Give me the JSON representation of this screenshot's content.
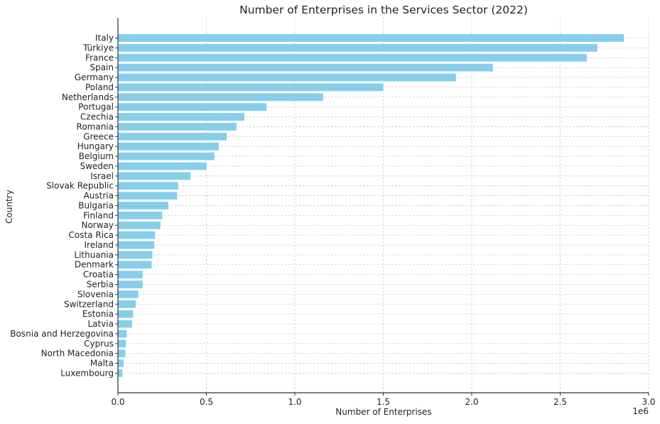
{
  "chart_data": {
    "type": "bar",
    "orientation": "horizontal",
    "title": "Number of Enterprises in the Services Sector (2022)",
    "xlabel": "Number of Enterprises",
    "ylabel": "Country",
    "x_offset_label": "1e6",
    "xlim": [
      0,
      3000000
    ],
    "x_ticks": [
      0,
      500000,
      1000000,
      1500000,
      2000000,
      2500000,
      3000000
    ],
    "x_tick_labels": [
      "0.0",
      "0.5",
      "1.0",
      "1.5",
      "2.0",
      "2.5",
      "3.0"
    ],
    "grid": true,
    "bar_color": "#87ceeb",
    "categories": [
      "Italy",
      "Türkiye",
      "France",
      "Spain",
      "Germany",
      "Poland",
      "Netherlands",
      "Portugal",
      "Czechia",
      "Romania",
      "Greece",
      "Hungary",
      "Belgium",
      "Sweden",
      "Israel",
      "Slovak Republic",
      "Austria",
      "Bulgaria",
      "Finland",
      "Norway",
      "Costa Rica",
      "Ireland",
      "Lithuania",
      "Denmark",
      "Croatia",
      "Serbia",
      "Slovenia",
      "Switzerland",
      "Estonia",
      "Latvia",
      "Bosnia and Herzegovina",
      "Cyprus",
      "North Macedonia",
      "Malta",
      "Luxembourg"
    ],
    "values": [
      2860000,
      2710000,
      2650000,
      2120000,
      1910000,
      1500000,
      1160000,
      840000,
      715000,
      670000,
      615000,
      570000,
      545000,
      500000,
      410000,
      340000,
      335000,
      285000,
      250000,
      240000,
      210000,
      205000,
      195000,
      190000,
      140000,
      140000,
      115000,
      100000,
      85000,
      80000,
      50000,
      45000,
      42000,
      32000,
      25000
    ]
  }
}
